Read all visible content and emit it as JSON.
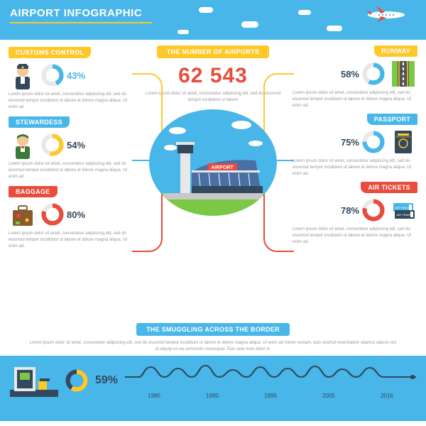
{
  "header": {
    "title": "AIRPORT INFOGRAPHIC",
    "bg_color": "#48b6e8",
    "underline_color": "#ffc829"
  },
  "colors": {
    "yellow": "#ffc829",
    "blue": "#48b6e8",
    "red": "#e74c3c",
    "dark": "#33495d",
    "text_muted": "#999999",
    "footer_bg": "#48b6e8",
    "donut_track": "#e8e8e8"
  },
  "center": {
    "label": "THE NUMBER OF AIRPORTS",
    "label_bg": "#ffc829",
    "number": "62 543",
    "number_color": "#e74c3c",
    "text": "Lorem ipsum dolor sit amet, consectetur adipiscing elit, sed do eiusmod tempor incididunt ut labore",
    "illus_sky": "#48b6e8",
    "illus_ground": "#7ac843"
  },
  "left_stats": [
    {
      "label": "CUSTOMS CONTROL",
      "label_bg": "#ffc829",
      "pct": "43%",
      "pct_value": 43,
      "pct_color": "#48b6e8",
      "donut_color": "#48b6e8",
      "text": "Lorem ipsum dolor sit amet, consectetur adipiscing elit, sed do eiusmod tempor incididunt ut labore et dolore magna aliqua. Ut enim ad.",
      "icon": "officer"
    },
    {
      "label": "STEWARDESS",
      "label_bg": "#48b6e8",
      "pct": "54%",
      "pct_value": 54,
      "pct_color": "#33495d",
      "donut_color": "#ffc829",
      "text": "Lorem ipsum dolor sit amet, consectetur adipiscing elit, sed do eiusmod tempor incididunt ut labore et dolore magna aliqua. Ut enim ad.",
      "icon": "stewardess"
    },
    {
      "label": "BAGGAGE",
      "label_bg": "#e74c3c",
      "pct": "80%",
      "pct_value": 80,
      "pct_color": "#33495d",
      "donut_color": "#e74c3c",
      "text": "Lorem ipsum dolor sit amet, consectetur adipiscing elit, sed do eiusmod tempor incididunt ut labore et dolore magna aliqua. Ut enim ad.",
      "icon": "baggage"
    }
  ],
  "right_stats": [
    {
      "label": "RUNWAY",
      "label_bg": "#ffc829",
      "pct": "58%",
      "pct_value": 58,
      "pct_color": "#33495d",
      "donut_color": "#48b6e8",
      "text": "Lorem ipsum dolor sit amet, consectetur adipiscing elit, sed do eiusmod tempor incididunt ut labore et dolore magna aliqua. Ut enim ad.",
      "icon": "runway"
    },
    {
      "label": "PASSPORT",
      "label_bg": "#48b6e8",
      "pct": "75%",
      "pct_value": 75,
      "pct_color": "#33495d",
      "donut_color": "#48b6e8",
      "text": "Lorem ipsum dolor sit amet, consectetur adipiscing elit, sed do eiusmod tempor incididunt ut labore et dolore magna aliqua. Ut enim ad.",
      "icon": "passport"
    },
    {
      "label": "AIR TICKETS",
      "label_bg": "#e74c3c",
      "pct": "78%",
      "pct_value": 78,
      "pct_color": "#33495d",
      "donut_color": "#e74c3c",
      "text": "Lorem ipsum dolor sit amet, consectetur adipiscing elit, sed do eiusmod tempor incididunt ut labore et dolore magna aliqua. Ut enim ad.",
      "icon": "tickets"
    }
  ],
  "footer": {
    "label": "THE SMUGGLING ACROSS THE BORDER",
    "label_bg": "#48b6e8",
    "text": "Lorem ipsum dolor sit amet, consectetur adipiscing elit, sed do eiusmod tempor incididunt ut labore et dolore magna aliqua. Ut enim ad minim veniam, quis nostrud exercitation ullamco laboris nisi ut aliquip ex ea commodo consequat. Duis aute irure dolor in.",
    "bg_color": "#48b6e8",
    "pct": "59%",
    "pct_value": 59,
    "pct_color": "#33495d",
    "donut_color": "#ffc829",
    "donut_track": "#33495d",
    "years": [
      "1985",
      "1990",
      "1995",
      "2005",
      "2016"
    ]
  }
}
